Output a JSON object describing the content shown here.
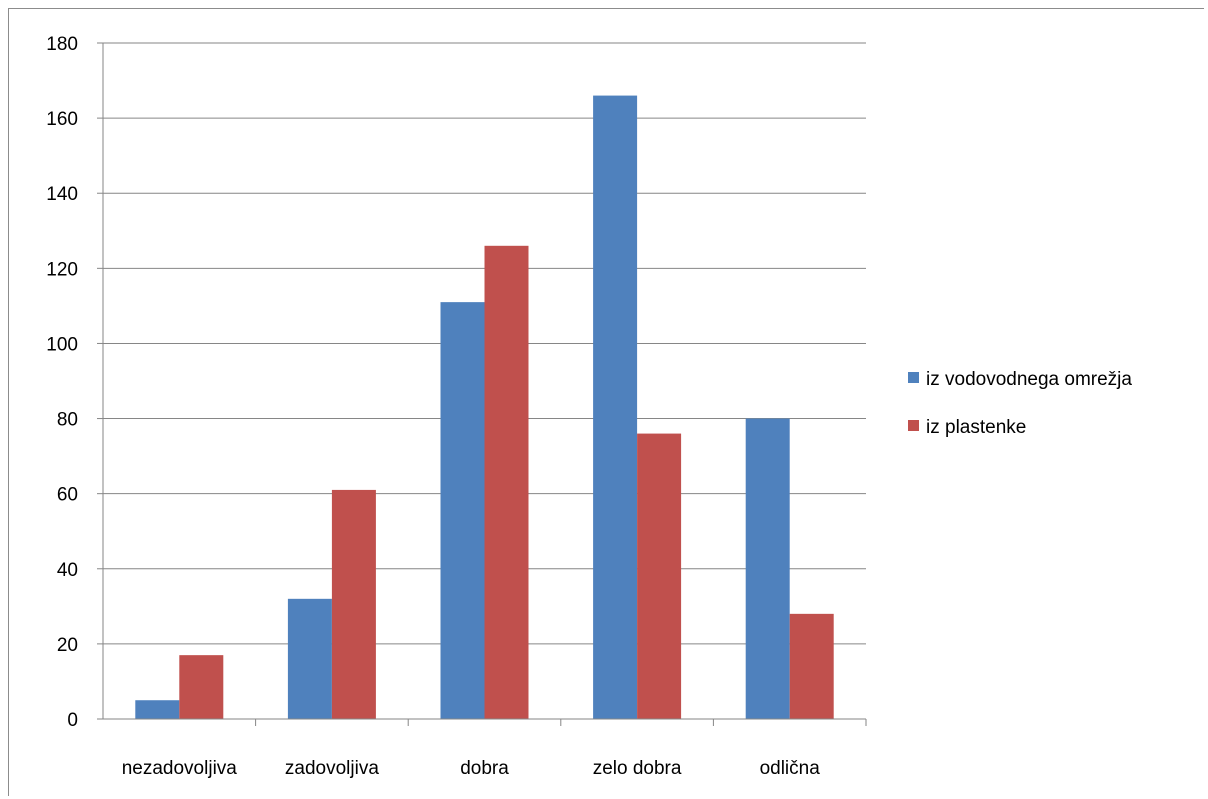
{
  "chart_data": {
    "type": "bar",
    "title": "",
    "xlabel": "",
    "ylabel": "",
    "categories": [
      "nezadovoljiva",
      "zadovoljiva",
      "dobra",
      "zelo dobra",
      "odlična"
    ],
    "series": [
      {
        "name": "iz vodovodnega omrežja",
        "values": [
          5,
          32,
          111,
          166,
          80
        ],
        "color": "#4f81bd"
      },
      {
        "name": "iz plastenke",
        "values": [
          17,
          61,
          126,
          76,
          28
        ],
        "color": "#c0504d"
      }
    ],
    "ylim": [
      0,
      180
    ],
    "yticks": [
      "0",
      "20",
      "40",
      "60",
      "80",
      "100",
      "120",
      "140",
      "160",
      "180"
    ],
    "grid": true,
    "legend_position": "right"
  }
}
